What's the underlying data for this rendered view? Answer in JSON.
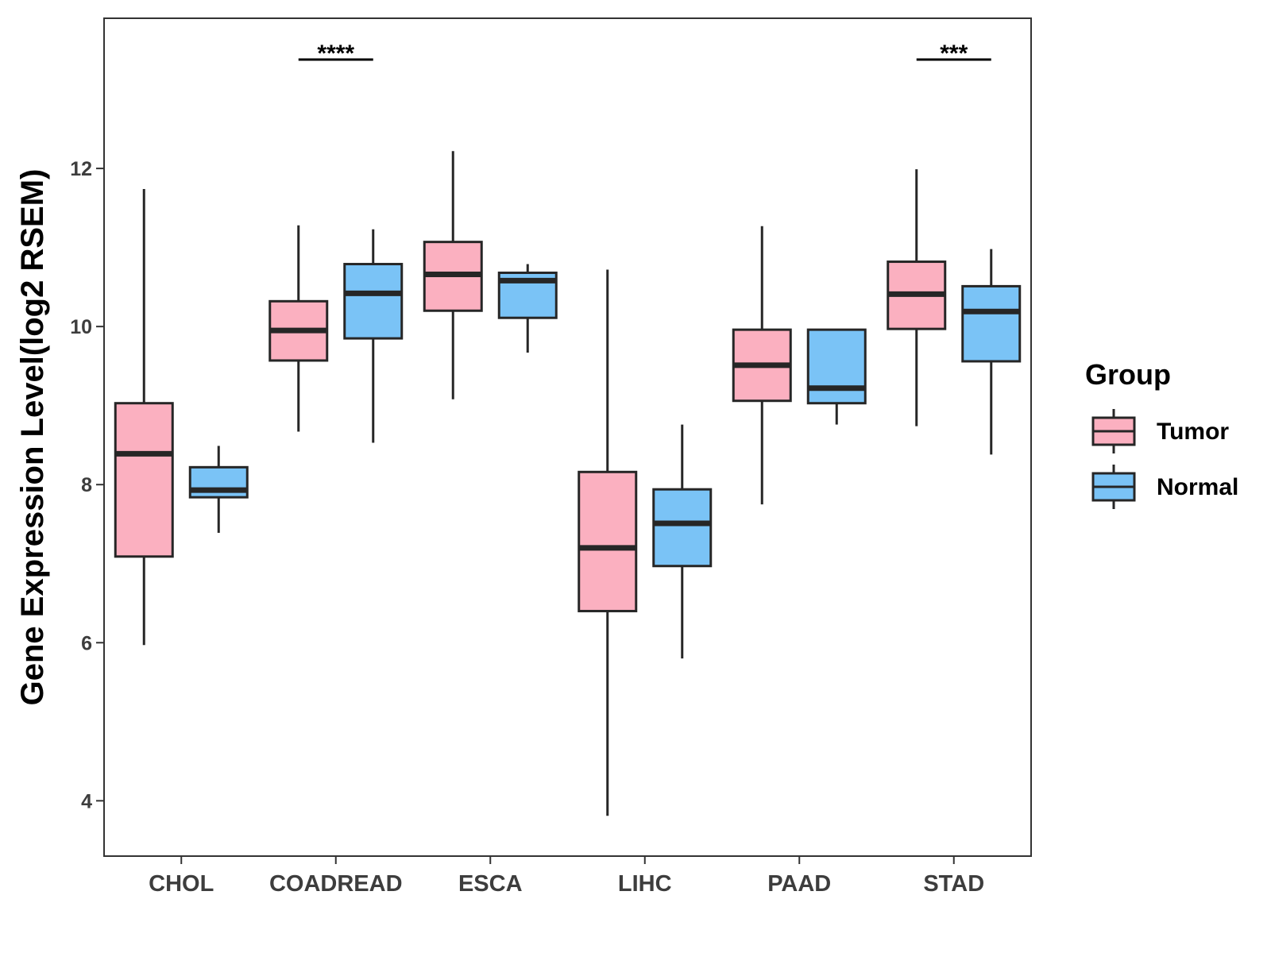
{
  "chart_data": {
    "type": "boxplot",
    "title": "",
    "xlabel": "",
    "ylabel": "Gene Expression Level(log2 RSEM)",
    "ylim": [
      3.3,
      13.9
    ],
    "yticks": [
      4,
      6,
      8,
      10,
      12
    ],
    "ytick_labels": [
      "4",
      "6",
      "8",
      "10",
      "12"
    ],
    "grid": false,
    "categories": [
      "CHOL",
      "COADREAD",
      "ESCA",
      "LIHC",
      "PAAD",
      "STAD"
    ],
    "legend": {
      "title": "Group",
      "position": "right",
      "entries": [
        "Tumor",
        "Normal"
      ]
    },
    "colors": {
      "Tumor": "#fbb0c0",
      "Normal": "#7ac3f6",
      "outline": "#262626"
    },
    "series": [
      {
        "name": "Tumor",
        "boxes": [
          {
            "category": "CHOL",
            "min": 5.97,
            "q1": 7.09,
            "median": 8.39,
            "q3": 9.03,
            "max": 11.74
          },
          {
            "category": "COADREAD",
            "min": 8.67,
            "q1": 9.57,
            "median": 9.95,
            "q3": 10.32,
            "max": 11.28
          },
          {
            "category": "ESCA",
            "min": 9.08,
            "q1": 10.2,
            "median": 10.66,
            "q3": 11.07,
            "max": 12.22
          },
          {
            "category": "LIHC",
            "min": 3.81,
            "q1": 6.4,
            "median": 7.2,
            "q3": 8.16,
            "max": 10.72
          },
          {
            "category": "PAAD",
            "min": 7.75,
            "q1": 9.06,
            "median": 9.51,
            "q3": 9.96,
            "max": 11.27
          },
          {
            "category": "STAD",
            "min": 8.74,
            "q1": 9.97,
            "median": 10.41,
            "q3": 10.82,
            "max": 11.99
          }
        ]
      },
      {
        "name": "Normal",
        "boxes": [
          {
            "category": "CHOL",
            "min": 7.39,
            "q1": 7.84,
            "median": 7.93,
            "q3": 8.22,
            "max": 8.49
          },
          {
            "category": "COADREAD",
            "min": 8.53,
            "q1": 9.85,
            "median": 10.42,
            "q3": 10.79,
            "max": 11.23
          },
          {
            "category": "ESCA",
            "min": 9.67,
            "q1": 10.11,
            "median": 10.58,
            "q3": 10.68,
            "max": 10.79
          },
          {
            "category": "LIHC",
            "min": 5.8,
            "q1": 6.97,
            "median": 7.51,
            "q3": 7.94,
            "max": 8.76
          },
          {
            "category": "PAAD",
            "min": 8.76,
            "q1": 9.03,
            "median": 9.22,
            "q3": 9.96,
            "max": 9.96
          },
          {
            "category": "STAD",
            "min": 8.38,
            "q1": 9.56,
            "median": 10.19,
            "q3": 10.51,
            "max": 10.98
          }
        ]
      }
    ],
    "annotations": [
      {
        "category": "COADREAD",
        "label": "****"
      },
      {
        "category": "STAD",
        "label": "***"
      }
    ]
  }
}
